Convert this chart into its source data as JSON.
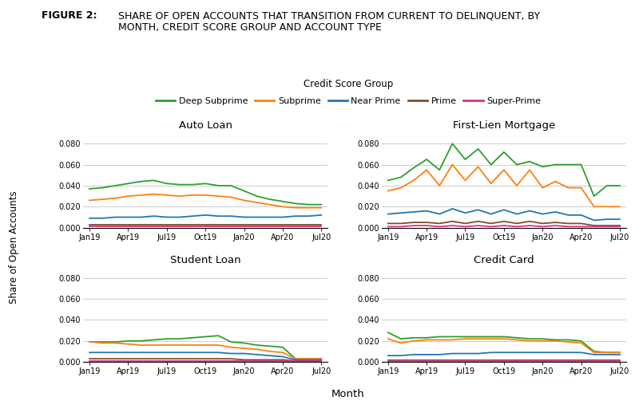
{
  "title_bold": "FIGURE 2:",
  "title_text": "SHARE OF OPEN ACCOUNTS THAT TRANSITION FROM CURRENT TO DELINQUENT, BY\nMONTH, CREDIT SCORE GROUP AND ACCOUNT TYPE",
  "legend_title": "Credit Score Group",
  "legend_labels": [
    "Deep Subprime",
    "Subprime",
    "Near Prime",
    "Prime",
    "Super-Prime"
  ],
  "colors": [
    "#2ca02c",
    "#ff7f0e",
    "#1f77b4",
    "#7B4F2E",
    "#d63384"
  ],
  "x_labels": [
    "Jan19",
    "Apr19",
    "Jul19",
    "Oct19",
    "Jan20",
    "Apr20",
    "Jul20"
  ],
  "x_ticks": [
    0,
    3,
    6,
    9,
    12,
    15,
    18
  ],
  "subplot_titles": [
    "Auto Loan",
    "First-Lien Mortgage",
    "Student Loan",
    "Credit Card"
  ],
  "ylabel": "Share of Open Accounts",
  "xlabel": "Month",
  "ylim": [
    0,
    0.09
  ],
  "yticks": [
    0.0,
    0.02,
    0.04,
    0.06,
    0.08
  ],
  "auto_loan": {
    "deep_subprime": [
      0.037,
      0.038,
      0.04,
      0.042,
      0.044,
      0.045,
      0.042,
      0.041,
      0.041,
      0.042,
      0.04,
      0.04,
      0.035,
      0.03,
      0.027,
      0.025,
      0.023,
      0.022,
      0.022
    ],
    "subprime": [
      0.026,
      0.027,
      0.028,
      0.03,
      0.031,
      0.032,
      0.031,
      0.03,
      0.031,
      0.031,
      0.03,
      0.029,
      0.026,
      0.024,
      0.022,
      0.02,
      0.019,
      0.019,
      0.019
    ],
    "near_prime": [
      0.009,
      0.009,
      0.01,
      0.01,
      0.01,
      0.011,
      0.01,
      0.01,
      0.011,
      0.012,
      0.011,
      0.011,
      0.01,
      0.01,
      0.01,
      0.01,
      0.011,
      0.011,
      0.012
    ],
    "prime": [
      0.003,
      0.003,
      0.003,
      0.003,
      0.003,
      0.003,
      0.003,
      0.003,
      0.003,
      0.003,
      0.003,
      0.003,
      0.003,
      0.003,
      0.003,
      0.003,
      0.003,
      0.003,
      0.003
    ],
    "super_prime": [
      0.001,
      0.001,
      0.001,
      0.001,
      0.001,
      0.001,
      0.001,
      0.001,
      0.001,
      0.001,
      0.001,
      0.001,
      0.001,
      0.001,
      0.001,
      0.001,
      0.001,
      0.001,
      0.001
    ]
  },
  "first_lien": {
    "deep_subprime": [
      0.045,
      0.048,
      0.057,
      0.065,
      0.055,
      0.08,
      0.065,
      0.075,
      0.06,
      0.072,
      0.06,
      0.063,
      0.058,
      0.06,
      0.06,
      0.06,
      0.03,
      0.04,
      0.04
    ],
    "subprime": [
      0.035,
      0.038,
      0.045,
      0.055,
      0.04,
      0.06,
      0.045,
      0.058,
      0.042,
      0.055,
      0.04,
      0.055,
      0.038,
      0.044,
      0.038,
      0.038,
      0.02,
      0.02,
      0.02
    ],
    "near_prime": [
      0.013,
      0.014,
      0.015,
      0.016,
      0.013,
      0.018,
      0.014,
      0.017,
      0.013,
      0.017,
      0.013,
      0.016,
      0.013,
      0.015,
      0.012,
      0.012,
      0.007,
      0.008,
      0.008
    ],
    "prime": [
      0.004,
      0.004,
      0.005,
      0.005,
      0.004,
      0.006,
      0.004,
      0.006,
      0.004,
      0.006,
      0.004,
      0.006,
      0.004,
      0.005,
      0.004,
      0.004,
      0.002,
      0.002,
      0.002
    ],
    "super_prime": [
      0.001,
      0.001,
      0.002,
      0.002,
      0.001,
      0.002,
      0.001,
      0.002,
      0.001,
      0.002,
      0.001,
      0.002,
      0.001,
      0.002,
      0.001,
      0.001,
      0.001,
      0.001,
      0.001
    ]
  },
  "student_loan": {
    "deep_subprime": [
      0.019,
      0.019,
      0.019,
      0.02,
      0.02,
      0.021,
      0.022,
      0.022,
      0.023,
      0.024,
      0.025,
      0.019,
      0.018,
      0.016,
      0.015,
      0.014,
      0.003,
      0.003,
      0.003
    ],
    "subprime": [
      0.019,
      0.018,
      0.018,
      0.017,
      0.016,
      0.016,
      0.016,
      0.016,
      0.016,
      0.016,
      0.016,
      0.014,
      0.013,
      0.012,
      0.01,
      0.009,
      0.003,
      0.003,
      0.003
    ],
    "near_prime": [
      0.009,
      0.009,
      0.009,
      0.009,
      0.009,
      0.009,
      0.009,
      0.009,
      0.009,
      0.009,
      0.009,
      0.008,
      0.008,
      0.007,
      0.006,
      0.005,
      0.002,
      0.002,
      0.002
    ],
    "prime": [
      0.003,
      0.003,
      0.003,
      0.003,
      0.003,
      0.003,
      0.003,
      0.003,
      0.003,
      0.003,
      0.003,
      0.003,
      0.002,
      0.002,
      0.002,
      0.002,
      0.001,
      0.001,
      0.001
    ],
    "super_prime": [
      0.001,
      0.001,
      0.001,
      0.001,
      0.001,
      0.001,
      0.001,
      0.001,
      0.001,
      0.001,
      0.001,
      0.001,
      0.001,
      0.001,
      0.001,
      0.001,
      0.001,
      0.001,
      0.001
    ]
  },
  "credit_card": {
    "deep_subprime": [
      0.028,
      0.022,
      0.023,
      0.023,
      0.024,
      0.024,
      0.024,
      0.024,
      0.024,
      0.024,
      0.023,
      0.022,
      0.022,
      0.021,
      0.021,
      0.02,
      0.01,
      0.009,
      0.009
    ],
    "subprime": [
      0.022,
      0.018,
      0.02,
      0.021,
      0.021,
      0.021,
      0.022,
      0.022,
      0.022,
      0.022,
      0.021,
      0.02,
      0.02,
      0.02,
      0.019,
      0.018,
      0.009,
      0.009,
      0.009
    ],
    "near_prime": [
      0.006,
      0.006,
      0.007,
      0.007,
      0.007,
      0.008,
      0.008,
      0.008,
      0.009,
      0.009,
      0.009,
      0.009,
      0.009,
      0.009,
      0.009,
      0.009,
      0.007,
      0.007,
      0.007
    ],
    "prime": [
      0.002,
      0.002,
      0.002,
      0.002,
      0.002,
      0.002,
      0.002,
      0.002,
      0.002,
      0.002,
      0.002,
      0.002,
      0.002,
      0.002,
      0.002,
      0.002,
      0.002,
      0.002,
      0.002
    ],
    "super_prime": [
      0.001,
      0.001,
      0.001,
      0.001,
      0.001,
      0.001,
      0.001,
      0.001,
      0.001,
      0.001,
      0.001,
      0.001,
      0.001,
      0.001,
      0.001,
      0.001,
      0.001,
      0.001,
      0.001
    ]
  }
}
